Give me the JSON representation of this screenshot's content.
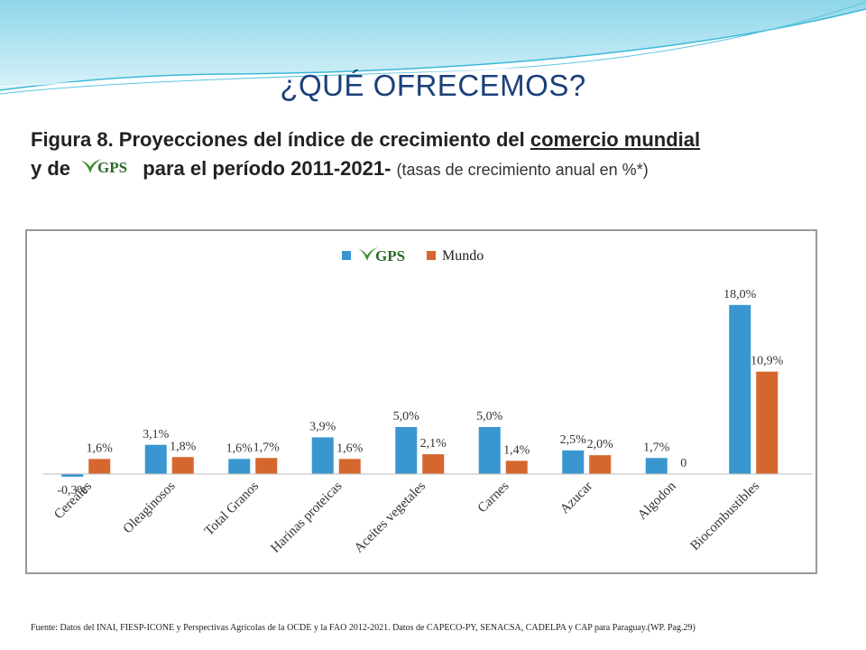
{
  "slide": {
    "title": "¿QUÉ OFRECEMOS?",
    "subtitle_part1": "Figura 8. Proyecciones del índice de crecimiento del ",
    "subtitle_underlined": "comercio mundial",
    "subtitle_part2": "y de",
    "subtitle_part3": "para el período 2011-2021-",
    "subtitle_note": "(tasas de crecimiento anual en %*)",
    "logo_text": "GPS",
    "footer": "Fuente: Datos del INAI, FIESP-ICONE y Perspectivas Agrícolas de la OCDE y la FAO 2012-2021. Datos de CAPECO-PY, SENACSA, CADELPA y CAP para Paraguay.(WP. Pag.29)"
  },
  "colors": {
    "gps": "#3a96cf",
    "mundo": "#d5672e",
    "title": "#1b3f7a",
    "logo_green": "#3f8d2f",
    "logo_text": "#2d6a2a"
  },
  "chart_data": {
    "type": "bar",
    "categories": [
      "Cereales",
      "Oleaginosos",
      "Total Granos",
      "Harinas proteicas",
      "Aceites vegetales",
      "Carnes",
      "Azucar",
      "Algodon",
      "Biocombustibles"
    ],
    "series": [
      {
        "name": "GPS",
        "values": [
          -0.3,
          3.1,
          1.6,
          3.9,
          5.0,
          5.0,
          2.5,
          1.7,
          18.0
        ],
        "labels": [
          "-0,3%",
          "3,1%",
          "1,6%",
          "3,9%",
          "5,0%",
          "5,0%",
          "2,5%",
          "1,7%",
          "18,0%"
        ]
      },
      {
        "name": "Mundo",
        "values": [
          1.6,
          1.8,
          1.7,
          1.6,
          2.1,
          1.4,
          2.0,
          0,
          10.9
        ],
        "labels": [
          "1,6%",
          "1,8%",
          "1,7%",
          "1,6%",
          "2,1%",
          "1,4%",
          "2,0%",
          "0",
          "10,9%"
        ]
      }
    ],
    "ylim": [
      -0.5,
      20
    ],
    "legend_position": "top-center",
    "grid": false
  }
}
